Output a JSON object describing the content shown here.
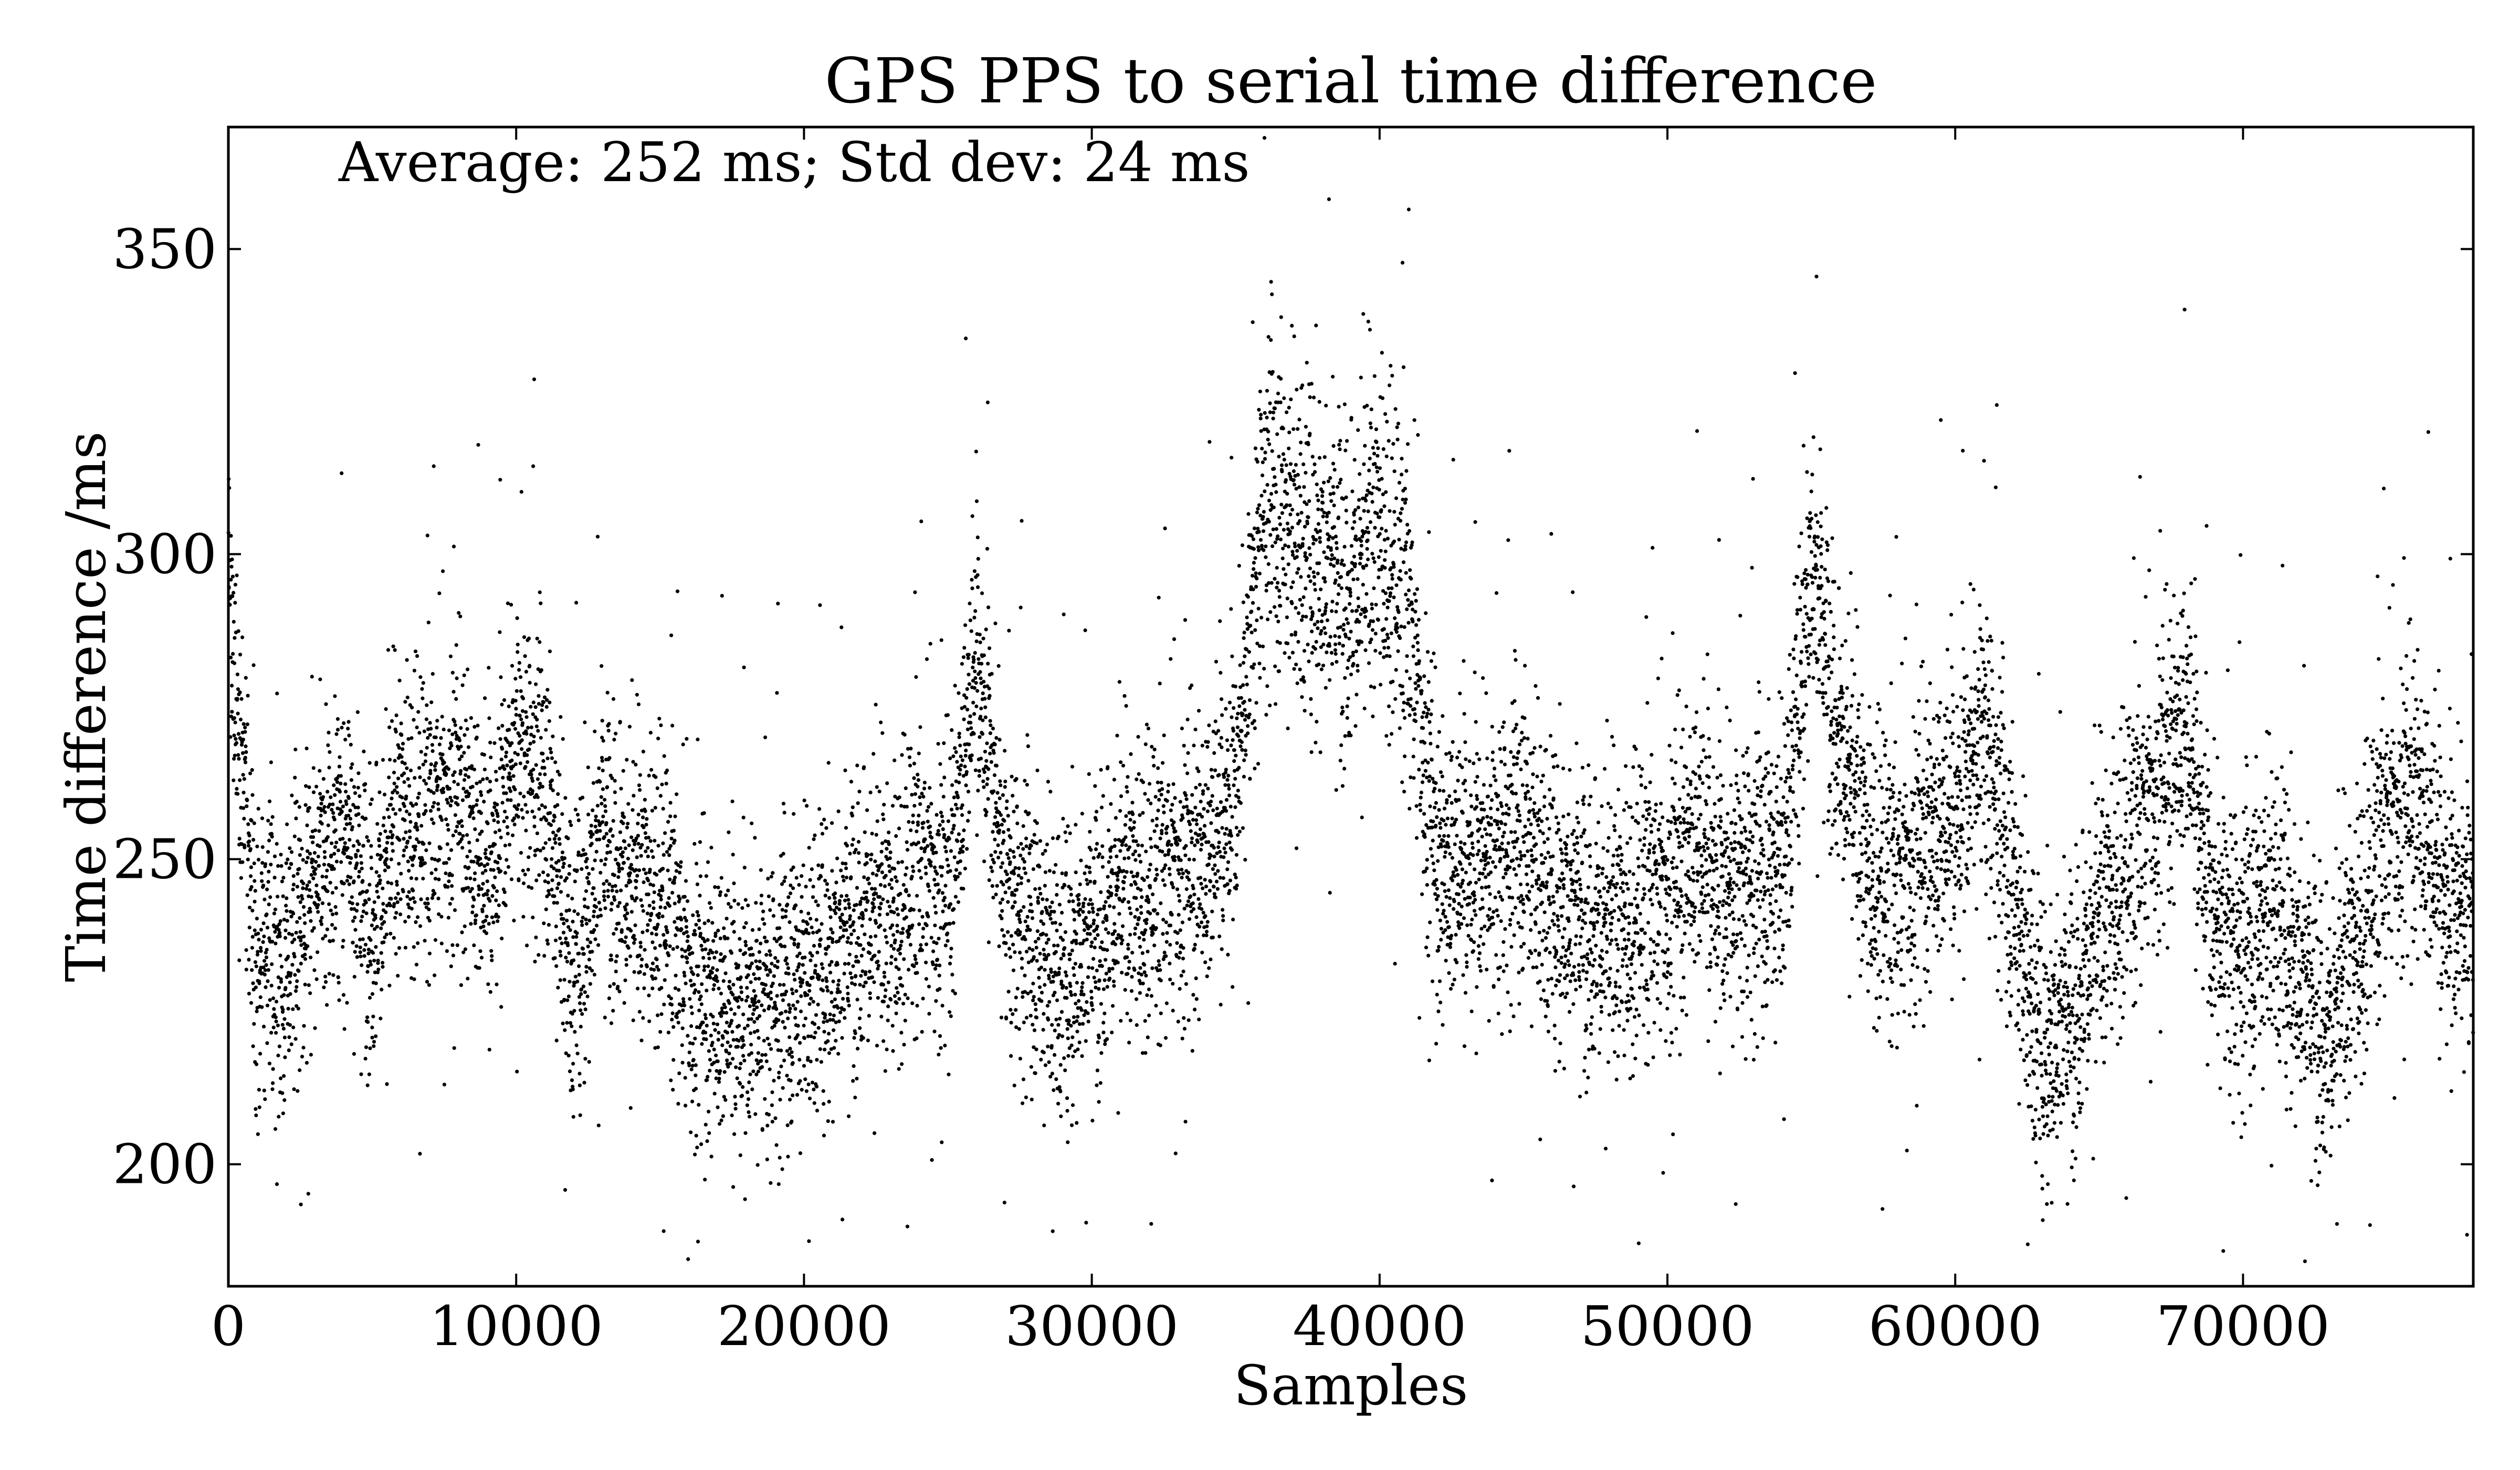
{
  "chart_data": {
    "type": "scatter",
    "title": "GPS PPS to serial time difference",
    "xlabel": "Samples",
    "ylabel": "Time difference /ms",
    "annotation": "Average: 252 ms; Std dev: 24 ms",
    "xlim": [
      0,
      78000
    ],
    "ylim": [
      180,
      370
    ],
    "xticks": [
      0,
      10000,
      20000,
      30000,
      40000,
      50000,
      60000,
      70000
    ],
    "yticks": [
      200,
      250,
      300,
      350
    ],
    "xtick_labels": [
      "0",
      "10000",
      "20000",
      "30000",
      "40000",
      "50000",
      "60000",
      "70000"
    ],
    "ytick_labels": [
      "200",
      "250",
      "300",
      "350"
    ],
    "grid": false,
    "legend": "none",
    "marker_color": "#000000",
    "series": [
      {
        "x": [
          0,
          1000,
          2000,
          3000,
          4000,
          5000,
          6000,
          7000,
          8000,
          9000,
          10000,
          11000,
          12000,
          13000,
          14000,
          15000,
          16000,
          17000,
          18000,
          19000,
          20000,
          21000,
          22000,
          23000,
          24000,
          25000,
          26000,
          27000,
          28000,
          29000,
          30000,
          31000,
          32000,
          33000,
          34000,
          35000,
          36000,
          37000,
          38000,
          39000,
          40000,
          41000,
          42000,
          43000,
          44000,
          45000,
          46000,
          47000,
          48000,
          49000,
          50000,
          51000,
          52000,
          53000,
          54000,
          55000,
          56000,
          57000,
          58000,
          59000,
          60000,
          61000,
          62000,
          63000,
          64000,
          65000,
          66000,
          67000,
          68000,
          69000,
          70000,
          71000,
          72000,
          73000,
          74000,
          75000,
          76000,
          77000,
          78000
        ],
        "y": [
          295,
          235,
          232,
          248,
          255,
          240,
          258,
          256,
          262,
          248,
          268,
          262,
          232,
          256,
          245,
          246,
          230,
          228,
          226,
          227,
          232,
          235,
          242,
          240,
          248,
          245,
          285,
          245,
          238,
          232,
          238,
          245,
          245,
          248,
          252,
          262,
          310,
          305,
          300,
          295,
          305,
          290,
          250,
          250,
          250,
          255,
          245,
          242,
          238,
          242,
          245,
          255,
          245,
          248,
          250,
          300,
          270,
          250,
          245,
          255,
          258,
          272,
          245,
          220,
          225,
          240,
          250,
          262,
          275,
          240,
          235,
          245,
          232,
          222,
          238,
          255,
          262,
          245,
          240
        ],
        "spread": [
          10,
          12,
          12,
          12,
          12,
          12,
          12,
          12,
          12,
          12,
          12,
          12,
          12,
          12,
          12,
          12,
          12,
          12,
          12,
          12,
          12,
          12,
          12,
          12,
          12,
          12,
          12,
          12,
          12,
          12,
          12,
          12,
          12,
          12,
          12,
          12,
          14,
          14,
          14,
          14,
          14,
          14,
          12,
          12,
          12,
          12,
          12,
          12,
          12,
          12,
          12,
          12,
          12,
          12,
          12,
          12,
          12,
          12,
          12,
          12,
          12,
          12,
          12,
          12,
          12,
          12,
          12,
          12,
          12,
          12,
          12,
          12,
          12,
          12,
          12,
          12,
          12,
          12,
          12
        ]
      }
    ]
  }
}
